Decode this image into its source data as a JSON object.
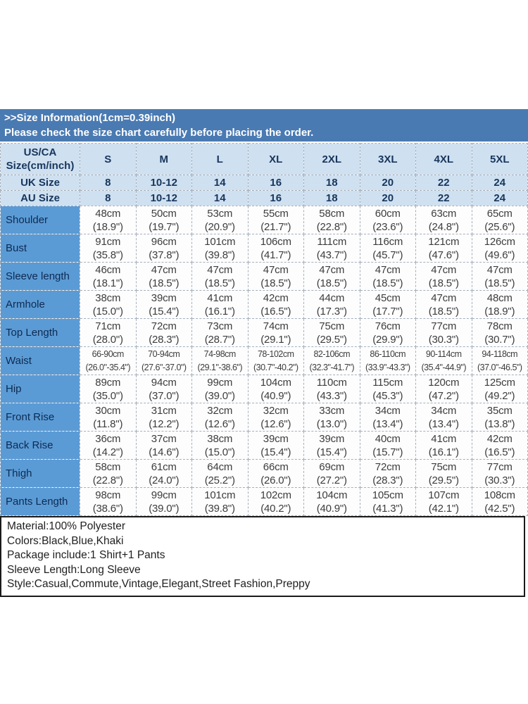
{
  "banner": {
    "line1": ">>Size Information(1cm=0.39inch)",
    "line2": "Please check the size chart carefully before placing the order."
  },
  "size_table": {
    "corner_header": "US/CA\nSize(cm/inch)",
    "size_headers": [
      "S",
      "M",
      "L",
      "XL",
      "2XL",
      "3XL",
      "4XL",
      "5XL"
    ],
    "region_rows": [
      {
        "label": "UK Size",
        "values": [
          "8",
          "10-12",
          "14",
          "16",
          "18",
          "20",
          "22",
          "24"
        ]
      },
      {
        "label": "AU Size",
        "values": [
          "8",
          "10-12",
          "14",
          "16",
          "18",
          "20",
          "22",
          "24"
        ]
      }
    ],
    "measurement_rows": [
      {
        "label": "Shoulder",
        "cm": [
          "48cm",
          "50cm",
          "53cm",
          "55cm",
          "58cm",
          "60cm",
          "63cm",
          "65cm"
        ],
        "inch": [
          "(18.9\")",
          "(19.7\")",
          "(20.9\")",
          "(21.7\")",
          "(22.8\")",
          "(23.6\")",
          "(24.8\")",
          "(25.6\")"
        ]
      },
      {
        "label": "Bust",
        "cm": [
          "91cm",
          "96cm",
          "101cm",
          "106cm",
          "111cm",
          "116cm",
          "121cm",
          "126cm"
        ],
        "inch": [
          "(35.8\")",
          "(37.8\")",
          "(39.8\")",
          "(41.7\")",
          "(43.7\")",
          "(45.7\")",
          "(47.6\")",
          "(49.6\")"
        ]
      },
      {
        "label": "Sleeve length",
        "cm": [
          "46cm",
          "47cm",
          "47cm",
          "47cm",
          "47cm",
          "47cm",
          "47cm",
          "47cm"
        ],
        "inch": [
          "(18.1\")",
          "(18.5\")",
          "(18.5\")",
          "(18.5\")",
          "(18.5\")",
          "(18.5\")",
          "(18.5\")",
          "(18.5\")"
        ]
      },
      {
        "label": "Armhole",
        "cm": [
          "38cm",
          "39cm",
          "41cm",
          "42cm",
          "44cm",
          "45cm",
          "47cm",
          "48cm"
        ],
        "inch": [
          "(15.0\")",
          "(15.4\")",
          "(16.1\")",
          "(16.5\")",
          "(17.3\")",
          "(17.7\")",
          "(18.5\")",
          "(18.9\")"
        ]
      },
      {
        "label": "Top Length",
        "cm": [
          "71cm",
          "72cm",
          "73cm",
          "74cm",
          "75cm",
          "76cm",
          "77cm",
          "78cm"
        ],
        "inch": [
          "(28.0\")",
          "(28.3\")",
          "(28.7\")",
          "(29.1\")",
          "(29.5\")",
          "(29.9\")",
          "(30.3\")",
          "(30.7\")"
        ]
      },
      {
        "label": "Waist",
        "cm": [
          "66-90cm",
          "70-94cm",
          "74-98cm",
          "78-102cm",
          "82-106cm",
          "86-110cm",
          "90-114cm",
          "94-118cm"
        ],
        "inch": [
          "(26.0\"-35.4\")",
          "(27.6\"-37.0\")",
          "(29.1\"-38.6\")",
          "(30.7\"-40.2\")",
          "(32.3\"-41.7\")",
          "(33.9\"-43.3\")",
          "(35.4\"-44.9\")",
          "(37.0\"-46.5\")"
        ]
      },
      {
        "label": "Hip",
        "cm": [
          "89cm",
          "94cm",
          "99cm",
          "104cm",
          "110cm",
          "115cm",
          "120cm",
          "125cm"
        ],
        "inch": [
          "(35.0\")",
          "(37.0\")",
          "(39.0\")",
          "(40.9\")",
          "(43.3\")",
          "(45.3\")",
          "(47.2\")",
          "(49.2\")"
        ]
      },
      {
        "label": "Front Rise",
        "cm": [
          "30cm",
          "31cm",
          "32cm",
          "32cm",
          "33cm",
          "34cm",
          "34cm",
          "35cm"
        ],
        "inch": [
          "(11.8\")",
          "(12.2\")",
          "(12.6\")",
          "(12.6\")",
          "(13.0\")",
          "(13.4\")",
          "(13.4\")",
          "(13.8\")"
        ]
      },
      {
        "label": "Back Rise",
        "cm": [
          "36cm",
          "37cm",
          "38cm",
          "39cm",
          "39cm",
          "40cm",
          "41cm",
          "42cm"
        ],
        "inch": [
          "(14.2\")",
          "(14.6\")",
          "(15.0\")",
          "(15.4\")",
          "(15.4\")",
          "(15.7\")",
          "(16.1\")",
          "(16.5\")"
        ]
      },
      {
        "label": "Thigh",
        "cm": [
          "58cm",
          "61cm",
          "64cm",
          "66cm",
          "69cm",
          "72cm",
          "75cm",
          "77cm"
        ],
        "inch": [
          "(22.8\")",
          "(24.0\")",
          "(25.2\")",
          "(26.0\")",
          "(27.2\")",
          "(28.3\")",
          "(29.5\")",
          "(30.3\")"
        ]
      },
      {
        "label": "Pants Length",
        "cm": [
          "98cm",
          "99cm",
          "101cm",
          "102cm",
          "104cm",
          "105cm",
          "107cm",
          "108cm"
        ],
        "inch": [
          "(38.6\")",
          "(39.0\")",
          "(39.8\")",
          "(40.2\")",
          "(40.9\")",
          "(41.3\")",
          "(42.1\")",
          "(42.5\")"
        ]
      }
    ]
  },
  "product_details": {
    "lines": [
      "Material:100% Polyester",
      "Colors:Black,Blue,Khaki",
      "Package include:1 Shirt+1 Pants",
      "Sleeve Length:Long Sleeve",
      "Style:Casual,Commute,Vintage,Elegant,Street Fashion,Preppy"
    ]
  },
  "colors": {
    "banner_bg": "#4a7ab2",
    "header_bg": "#cfe0f0",
    "label_column_bg": "#5b9bd5",
    "header_text": "#17365d",
    "cell_text": "#3d3d3d",
    "border": "#a3afbc",
    "details_border": "#1a1a1a"
  }
}
